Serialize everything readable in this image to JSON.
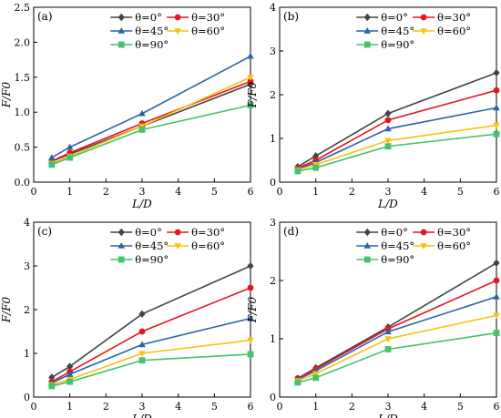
{
  "x_axis_label": "L/D",
  "y_axis_label": "F/F0",
  "colors": {
    "0": "#444444",
    "30": "#e8141e",
    "45": "#2b64a8",
    "60": "#f7c20c",
    "90": "#43c36e"
  },
  "legend": {
    "0": "θ=0°",
    "30": "θ=30°",
    "45": "θ=45°",
    "60": "θ=60°",
    "90": "θ=90°"
  },
  "chart_data": [
    {
      "type": "line",
      "panel": "(a)",
      "xlabel": "L/D",
      "ylabel": "F/F0",
      "xlim": [
        0,
        6
      ],
      "ylim": [
        0,
        2.5
      ],
      "x_ticks": [
        "0",
        "1",
        "2",
        "3",
        "4",
        "5",
        "6"
      ],
      "y_ticks": [
        "0.0",
        "0.5",
        "1.0",
        "1.5",
        "2.0",
        "2.5"
      ],
      "x": [
        0.5,
        1,
        3,
        6
      ],
      "series": [
        {
          "name": "θ=0°",
          "key": "0",
          "marker": "diamond",
          "values": [
            0.3,
            0.4,
            0.8,
            1.4
          ]
        },
        {
          "name": "θ=30°",
          "key": "30",
          "marker": "circle",
          "values": [
            0.3,
            0.42,
            0.84,
            1.44
          ]
        },
        {
          "name": "θ=45°",
          "key": "45",
          "marker": "triangle",
          "values": [
            0.35,
            0.5,
            0.98,
            1.8
          ]
        },
        {
          "name": "θ=60°",
          "key": "60",
          "marker": "tri-down",
          "values": [
            0.27,
            0.37,
            0.8,
            1.5
          ]
        },
        {
          "name": "θ=90°",
          "key": "90",
          "marker": "square",
          "values": [
            0.25,
            0.35,
            0.75,
            1.1
          ]
        }
      ]
    },
    {
      "type": "line",
      "panel": "(b)",
      "xlabel": "L/D",
      "ylabel": "F/F0",
      "xlim": [
        0,
        6
      ],
      "ylim": [
        0,
        4
      ],
      "x_ticks": [
        "0",
        "1",
        "2",
        "3",
        "4",
        "5",
        "6"
      ],
      "y_ticks": [
        "0",
        "1",
        "2",
        "3",
        "4"
      ],
      "x": [
        0.5,
        1,
        3,
        6
      ],
      "series": [
        {
          "name": "θ=0°",
          "key": "0",
          "marker": "diamond",
          "values": [
            0.35,
            0.6,
            1.57,
            2.5
          ]
        },
        {
          "name": "θ=30°",
          "key": "30",
          "marker": "circle",
          "values": [
            0.32,
            0.5,
            1.42,
            2.1
          ]
        },
        {
          "name": "θ=45°",
          "key": "45",
          "marker": "triangle",
          "values": [
            0.3,
            0.45,
            1.22,
            1.7
          ]
        },
        {
          "name": "θ=60°",
          "key": "60",
          "marker": "tri-down",
          "values": [
            0.28,
            0.4,
            0.95,
            1.3
          ]
        },
        {
          "name": "θ=90°",
          "key": "90",
          "marker": "square",
          "values": [
            0.25,
            0.33,
            0.82,
            1.1
          ]
        }
      ]
    },
    {
      "type": "line",
      "panel": "(c)",
      "xlabel": "L/D",
      "ylabel": "F/F0",
      "xlim": [
        0,
        6
      ],
      "ylim": [
        0,
        4
      ],
      "x_ticks": [
        "0",
        "1",
        "2",
        "3",
        "4",
        "5",
        "6"
      ],
      "y_ticks": [
        "0",
        "1",
        "2",
        "3",
        "4"
      ],
      "x": [
        0.5,
        1,
        3,
        6
      ],
      "series": [
        {
          "name": "θ=0°",
          "key": "0",
          "marker": "diamond",
          "values": [
            0.45,
            0.7,
            1.9,
            3.0
          ]
        },
        {
          "name": "θ=30°",
          "key": "30",
          "marker": "circle",
          "values": [
            0.35,
            0.58,
            1.5,
            2.5
          ]
        },
        {
          "name": "θ=45°",
          "key": "45",
          "marker": "triangle",
          "values": [
            0.32,
            0.52,
            1.2,
            1.8
          ]
        },
        {
          "name": "θ=60°",
          "key": "60",
          "marker": "tri-down",
          "values": [
            0.28,
            0.4,
            1.0,
            1.3
          ]
        },
        {
          "name": "θ=90°",
          "key": "90",
          "marker": "square",
          "values": [
            0.25,
            0.35,
            0.84,
            0.98
          ]
        }
      ]
    },
    {
      "type": "line",
      "panel": "(d)",
      "xlabel": "L/D",
      "ylabel": "F/F0",
      "xlim": [
        0,
        6
      ],
      "ylim": [
        0,
        3
      ],
      "x_ticks": [
        "0",
        "1",
        "2",
        "3",
        "4",
        "5",
        "6"
      ],
      "y_ticks": [
        "0",
        "1",
        "2",
        "3"
      ],
      "x": [
        0.5,
        1,
        3,
        6
      ],
      "series": [
        {
          "name": "θ=0°",
          "key": "0",
          "marker": "diamond",
          "values": [
            0.32,
            0.5,
            1.2,
            2.3
          ]
        },
        {
          "name": "θ=30°",
          "key": "30",
          "marker": "circle",
          "values": [
            0.32,
            0.48,
            1.17,
            2.0
          ]
        },
        {
          "name": "θ=45°",
          "key": "45",
          "marker": "triangle",
          "values": [
            0.3,
            0.45,
            1.12,
            1.72
          ]
        },
        {
          "name": "θ=60°",
          "key": "60",
          "marker": "tri-down",
          "values": [
            0.28,
            0.4,
            1.0,
            1.4
          ]
        },
        {
          "name": "θ=90°",
          "key": "90",
          "marker": "square",
          "values": [
            0.25,
            0.33,
            0.82,
            1.1
          ]
        }
      ]
    }
  ]
}
